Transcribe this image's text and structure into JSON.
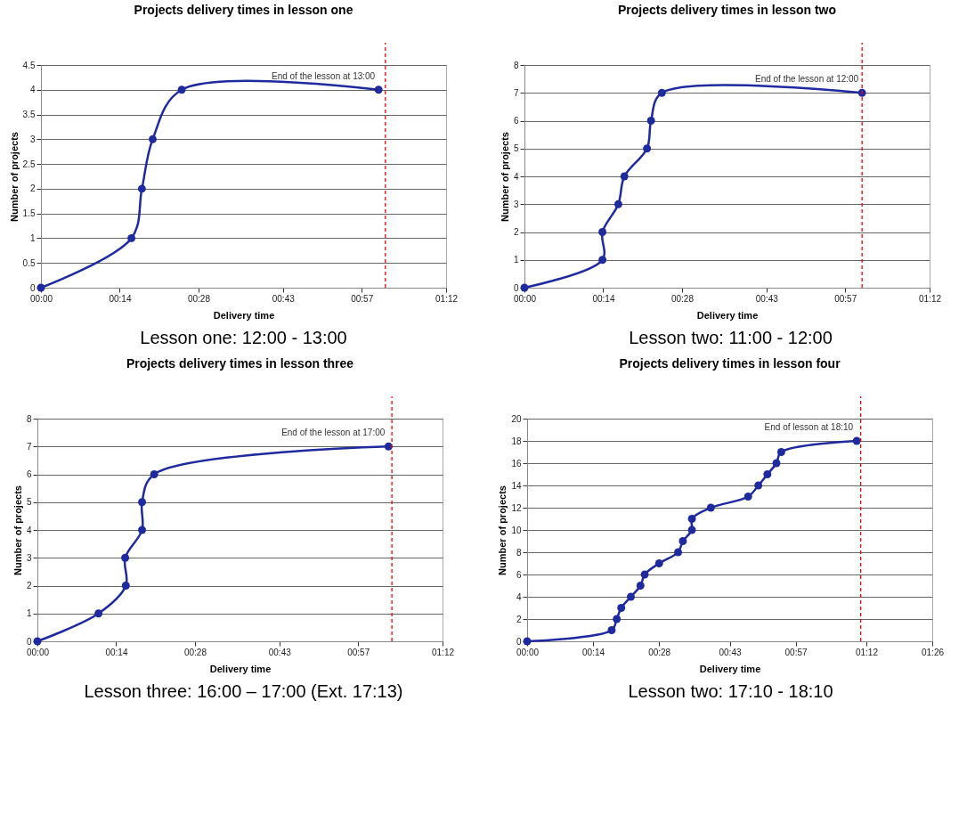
{
  "chart_data": [
    {
      "type": "line",
      "title": "Projects delivery times in lesson one",
      "xlabel": "Delivery time",
      "ylabel": "Number of projects",
      "x": [
        0,
        0.268,
        0.299,
        0.331,
        0.417,
        1.0
      ],
      "series": [
        {
          "color": "#1f2a9e",
          "values": [
            0,
            1,
            2,
            3,
            4,
            4
          ]
        }
      ],
      "xlim": [
        0,
        1.2
      ],
      "xticks": [
        {
          "value": 0,
          "label": "00:00"
        },
        {
          "value": 0.2333,
          "label": "00:14"
        },
        {
          "value": 0.4667,
          "label": "00:28"
        },
        {
          "value": 0.7167,
          "label": "00:43"
        },
        {
          "value": 0.95,
          "label": "00:57"
        },
        {
          "value": 1.2,
          "label": "01:12"
        }
      ],
      "ylim": [
        0,
        4.5
      ],
      "yticks": [
        0,
        0.5,
        1,
        1.5,
        2,
        2.5,
        3,
        3.5,
        4,
        4.5
      ],
      "ref_lines": [
        {
          "axis": "x",
          "value": 1.02,
          "color": "#ff0000",
          "line_style": "dashed"
        }
      ],
      "annotations": [
        {
          "text": "End of the lesson at 13:00",
          "x": 1.0,
          "y": 4
        },
        "Lesson one: 12:00 - 13:00"
      ],
      "grid": "y",
      "marker": "circle",
      "line_style": "solid"
    },
    {
      "type": "line",
      "title": "Projects delivery times in lesson two",
      "xlabel": "Delivery time",
      "ylabel": "Number of projects",
      "x": [
        0,
        0.231,
        0.231,
        0.278,
        0.296,
        0.363,
        0.375,
        0.407,
        1.0
      ],
      "series": [
        {
          "color": "#1f2a9e",
          "values": [
            0,
            1,
            2,
            3,
            4,
            5,
            6,
            7,
            7
          ]
        }
      ],
      "xlim": [
        0,
        1.2
      ],
      "xticks": [
        {
          "value": 0,
          "label": "00:00"
        },
        {
          "value": 0.2333,
          "label": "00:14"
        },
        {
          "value": 0.4667,
          "label": "00:28"
        },
        {
          "value": 0.7167,
          "label": "00:43"
        },
        {
          "value": 0.95,
          "label": "00:57"
        },
        {
          "value": 1.2,
          "label": "01:12"
        }
      ],
      "ylim": [
        0,
        8
      ],
      "yticks": [
        0,
        1,
        2,
        3,
        4,
        5,
        6,
        7,
        8
      ],
      "ref_lines": [
        {
          "axis": "x",
          "value": 1.0,
          "color": "#ff0000",
          "line_style": "dashed"
        }
      ],
      "annotations": [
        {
          "text": "End of the lesson at 12:00",
          "x": 1.0,
          "y": 7
        },
        "Lesson two: 11:00 - 12:00"
      ],
      "grid": "y",
      "marker": "circle",
      "line_style": "solid"
    },
    {
      "type": "line",
      "title": "Projects delivery times in lesson three",
      "xlabel": "Delivery time",
      "ylabel": "Number of projects",
      "x": [
        0,
        0.181,
        0.262,
        0.26,
        0.31,
        0.31,
        0.346,
        1.04
      ],
      "series": [
        {
          "color": "#1f2a9e",
          "values": [
            0,
            1,
            2,
            3,
            4,
            5,
            6,
            7
          ]
        }
      ],
      "xlim": [
        0,
        1.2
      ],
      "xticks": [
        {
          "value": 0,
          "label": "00:00"
        },
        {
          "value": 0.2333,
          "label": "00:14"
        },
        {
          "value": 0.4667,
          "label": "00:28"
        },
        {
          "value": 0.7167,
          "label": "00:43"
        },
        {
          "value": 0.95,
          "label": "00:57"
        },
        {
          "value": 1.2,
          "label": "01:12"
        }
      ],
      "ylim": [
        0,
        8
      ],
      "yticks": [
        0,
        1,
        2,
        3,
        4,
        5,
        6,
        7,
        8
      ],
      "ref_lines": [
        {
          "axis": "x",
          "value": 1.05,
          "color": "#ff0000",
          "line_style": "dashed"
        }
      ],
      "annotations": [
        {
          "text": "End of the lesson at 17:00",
          "x": 1.04,
          "y": 7
        },
        "Lesson three: 16:00 – 17:00 (Ext. 17:13)"
      ],
      "grid": "y",
      "marker": "circle",
      "line_style": "solid"
    },
    {
      "type": "line",
      "title": "Projects delivery times in lesson four",
      "xlabel": "Delivery time",
      "ylabel": "Number of projects",
      "x": [
        0,
        0.299,
        0.317,
        0.333,
        0.367,
        0.401,
        0.416,
        0.467,
        0.534,
        0.551,
        0.583,
        0.583,
        0.65,
        0.782,
        0.818,
        0.85,
        0.882,
        0.899,
        1.166
      ],
      "series": [
        {
          "color": "#1f2a9e",
          "values": [
            0,
            1,
            2,
            3,
            4,
            5,
            6,
            7,
            8,
            9,
            10,
            11,
            12,
            13,
            14,
            15,
            16,
            17,
            18
          ]
        }
      ],
      "xlim": [
        0,
        1.4333
      ],
      "xticks": [
        {
          "value": 0,
          "label": "00:00"
        },
        {
          "value": 0.2333,
          "label": "00:14"
        },
        {
          "value": 0.4667,
          "label": "00:28"
        },
        {
          "value": 0.7167,
          "label": "00:43"
        },
        {
          "value": 0.95,
          "label": "00:57"
        },
        {
          "value": 1.2,
          "label": "01:12"
        },
        {
          "value": 1.4333,
          "label": "01:26"
        }
      ],
      "ylim": [
        0,
        20
      ],
      "yticks": [
        0,
        2,
        4,
        6,
        8,
        10,
        12,
        14,
        16,
        18,
        20
      ],
      "ref_lines": [
        {
          "axis": "x",
          "value": 1.18,
          "color": "#ff0000",
          "line_style": "dashed"
        }
      ],
      "annotations": [
        {
          "text": "End of lesson at 18:10",
          "x": 1.166,
          "y": 18
        },
        "Lesson two: 17:10 - 18:10"
      ],
      "grid": "y",
      "marker": "circle",
      "line_style": "solid"
    }
  ]
}
